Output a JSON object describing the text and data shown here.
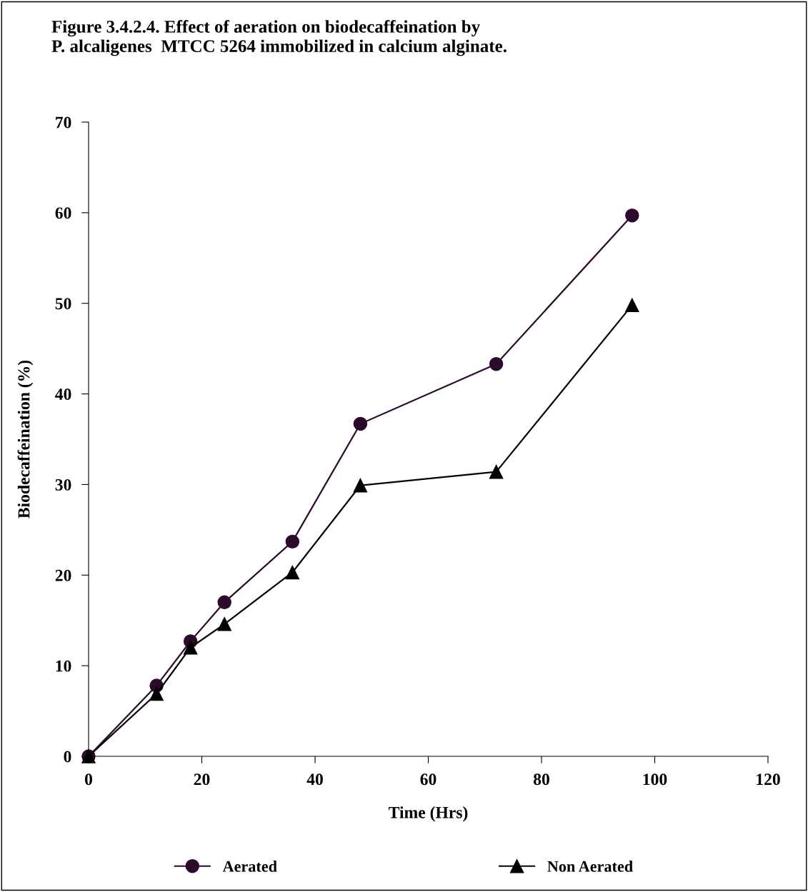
{
  "chart_data": {
    "type": "line",
    "title": "Figure 3.4.2.4. Effect of aeration on biodecaffeination by\nP. alcaligenes  MTCC 5264 immobilized in calcium alginate.",
    "xlabel": "Time (Hrs)",
    "ylabel": "Biodecaffeination (%)",
    "x": [
      0,
      12,
      18,
      24,
      36,
      48,
      72,
      96
    ],
    "series": [
      {
        "name": "Aerated",
        "color": "#2b0a2b",
        "marker": "circle",
        "values": [
          0,
          7.8,
          12.7,
          17.0,
          23.7,
          36.7,
          43.3,
          59.7
        ]
      },
      {
        "name": "Non Aerated",
        "color": "#000000",
        "marker": "triangle",
        "values": [
          0,
          6.9,
          12.0,
          14.6,
          20.3,
          29.9,
          31.4,
          49.8
        ]
      }
    ],
    "xlim": [
      0,
      120
    ],
    "xticks": [
      0,
      20,
      40,
      60,
      80,
      100,
      120
    ],
    "ylim": [
      0,
      70
    ],
    "yticks": [
      0,
      10,
      20,
      30,
      40,
      50,
      60,
      70
    ],
    "grid": false,
    "legend": "bottom",
    "line_style": "solid"
  }
}
